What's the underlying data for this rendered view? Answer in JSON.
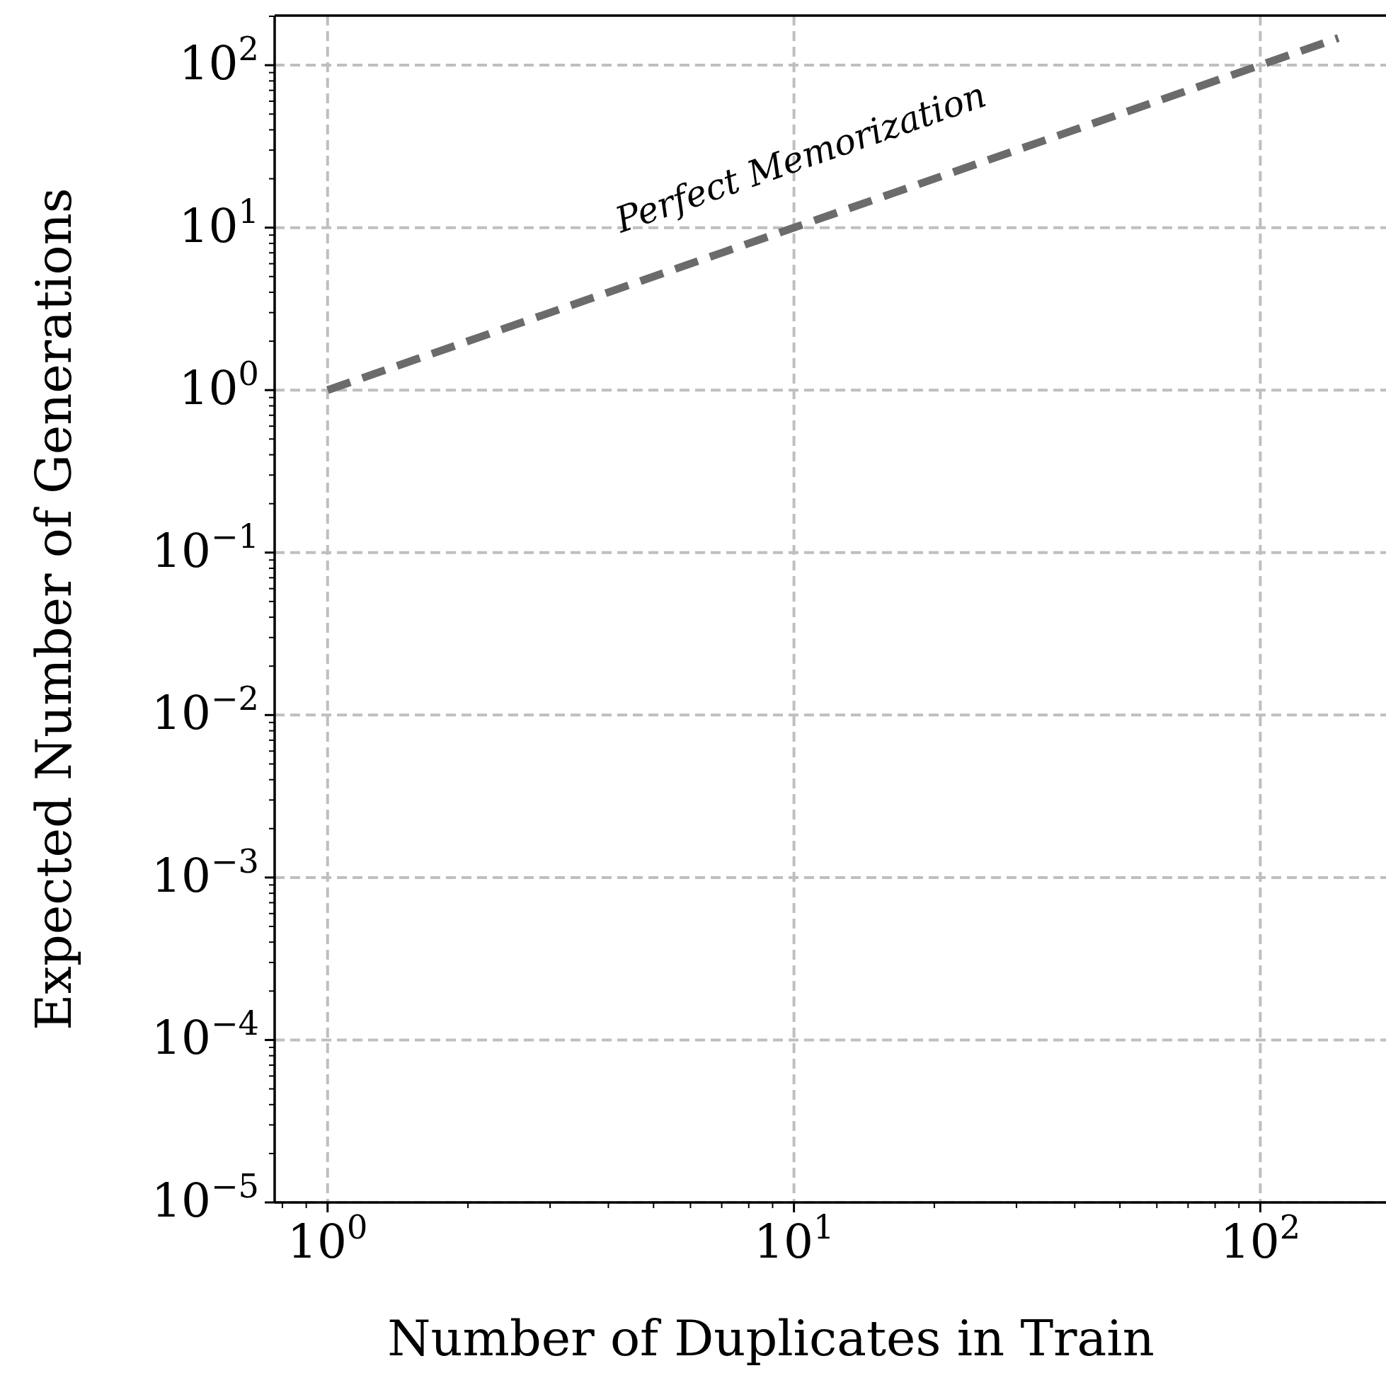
{
  "chart_data": {
    "type": "line",
    "xlabel": "Number of Duplicates in Train",
    "ylabel": "Expected Number of Generations",
    "log": "xy",
    "grid": true,
    "line_style": "dashed",
    "xlim": [
      0.77,
      186
    ],
    "ylim": [
      1e-05,
      202
    ],
    "xticks": [
      {
        "value": 1,
        "label": "10$^{0}$"
      },
      {
        "value": 10,
        "label": "10$^{1}$"
      },
      {
        "value": 100,
        "label": "10$^{2}$"
      },
      {
        "value": 0.8,
        "label": null
      },
      {
        "value": 0.9,
        "label": null
      },
      {
        "value": 2,
        "label": null
      },
      {
        "value": 3,
        "label": null
      },
      {
        "value": 4,
        "label": null
      },
      {
        "value": 5,
        "label": null
      },
      {
        "value": 6,
        "label": null
      },
      {
        "value": 7,
        "label": null
      },
      {
        "value": 8,
        "label": null
      },
      {
        "value": 9,
        "label": null
      },
      {
        "value": 20,
        "label": null
      },
      {
        "value": 30,
        "label": null
      },
      {
        "value": 40,
        "label": null
      },
      {
        "value": 50,
        "label": null
      },
      {
        "value": 60,
        "label": null
      },
      {
        "value": 70,
        "label": null
      },
      {
        "value": 80,
        "label": null
      },
      {
        "value": 90,
        "label": null
      }
    ],
    "yticks": [
      {
        "value": 1e-05,
        "label": "10$^{−5}$"
      },
      {
        "value": 0.0001,
        "label": "10$^{−4}$"
      },
      {
        "value": 0.001,
        "label": "10$^{−3}$"
      },
      {
        "value": 0.01,
        "label": "10$^{−2}$"
      },
      {
        "value": 0.1,
        "label": "10$^{−1}$"
      },
      {
        "value": 1,
        "label": "10$^{0}$"
      },
      {
        "value": 10,
        "label": "10$^{1}$"
      },
      {
        "value": 100,
        "label": "10$^{2}$"
      },
      {
        "value": 2e-05,
        "label": null
      },
      {
        "value": 3e-05,
        "label": null
      },
      {
        "value": 4e-05,
        "label": null
      },
      {
        "value": 5e-05,
        "label": null
      },
      {
        "value": 6e-05,
        "label": null
      },
      {
        "value": 7e-05,
        "label": null
      },
      {
        "value": 8e-05,
        "label": null
      },
      {
        "value": 9e-05,
        "label": null
      },
      {
        "value": 0.0002,
        "label": null
      },
      {
        "value": 0.0003,
        "label": null
      },
      {
        "value": 0.0004,
        "label": null
      },
      {
        "value": 0.0005,
        "label": null
      },
      {
        "value": 0.0006,
        "label": null
      },
      {
        "value": 0.0007,
        "label": null
      },
      {
        "value": 0.0008,
        "label": null
      },
      {
        "value": 0.0009,
        "label": null
      },
      {
        "value": 0.002,
        "label": null
      },
      {
        "value": 0.003,
        "label": null
      },
      {
        "value": 0.004,
        "label": null
      },
      {
        "value": 0.005,
        "label": null
      },
      {
        "value": 0.006,
        "label": null
      },
      {
        "value": 0.007,
        "label": null
      },
      {
        "value": 0.008,
        "label": null
      },
      {
        "value": 0.009,
        "label": null
      },
      {
        "value": 0.02,
        "label": null
      },
      {
        "value": 0.03,
        "label": null
      },
      {
        "value": 0.04,
        "label": null
      },
      {
        "value": 0.05,
        "label": null
      },
      {
        "value": 0.06,
        "label": null
      },
      {
        "value": 0.07,
        "label": null
      },
      {
        "value": 0.08,
        "label": null
      },
      {
        "value": 0.09,
        "label": null
      },
      {
        "value": 0.2,
        "label": null
      },
      {
        "value": 0.3,
        "label": null
      },
      {
        "value": 0.4,
        "label": null
      },
      {
        "value": 0.5,
        "label": null
      },
      {
        "value": 0.6,
        "label": null
      },
      {
        "value": 0.7,
        "label": null
      },
      {
        "value": 0.8,
        "label": null
      },
      {
        "value": 0.9,
        "label": null
      },
      {
        "value": 2,
        "label": null
      },
      {
        "value": 3,
        "label": null
      },
      {
        "value": 4,
        "label": null
      },
      {
        "value": 5,
        "label": null
      },
      {
        "value": 6,
        "label": null
      },
      {
        "value": 7,
        "label": null
      },
      {
        "value": 8,
        "label": null
      },
      {
        "value": 9,
        "label": null
      },
      {
        "value": 20,
        "label": null
      },
      {
        "value": 30,
        "label": null
      },
      {
        "value": 40,
        "label": null
      },
      {
        "value": 50,
        "label": null
      },
      {
        "value": 60,
        "label": null
      },
      {
        "value": 70,
        "label": null
      },
      {
        "value": 80,
        "label": null
      },
      {
        "value": 90,
        "label": null
      },
      {
        "value": 200,
        "label": null
      }
    ],
    "series": [
      {
        "color": "#6b6b6b",
        "x": [
          1,
          147
        ],
        "values": [
          1,
          147
        ]
      }
    ],
    "annotations": [
      "Perfect Memorization"
    ]
  }
}
